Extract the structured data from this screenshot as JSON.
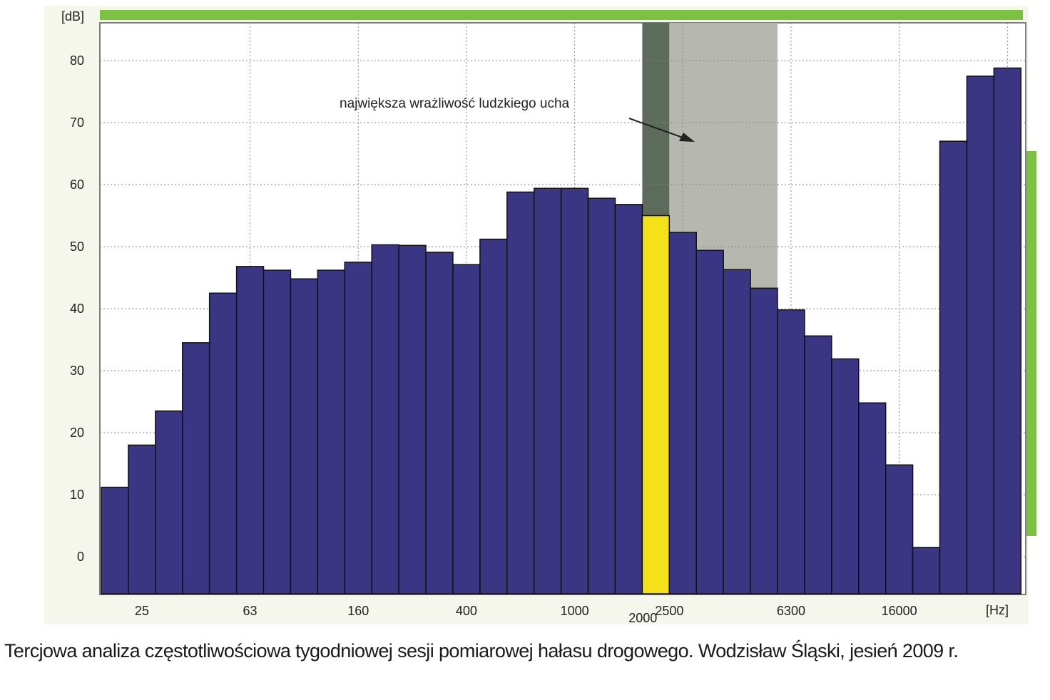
{
  "chart_data": {
    "type": "bar",
    "ylabel": "[dB]",
    "xlabel": "[Hz]",
    "ylim": [
      -6,
      85
    ],
    "yticks": [
      0,
      10,
      20,
      30,
      40,
      50,
      60,
      70,
      80
    ],
    "grid": true,
    "x_tick_labels": [
      {
        "band": 1,
        "label": "25"
      },
      {
        "band": 5,
        "label": "63"
      },
      {
        "band": 9,
        "label": "160"
      },
      {
        "band": 13,
        "label": "400"
      },
      {
        "band": 17,
        "label": "1000"
      },
      {
        "band": 20,
        "label": "2000"
      },
      {
        "band": 21,
        "label": "2500"
      },
      {
        "band": 25,
        "label": "6300"
      },
      {
        "band": 29,
        "label": "16000"
      }
    ],
    "values": [
      11.2,
      18,
      23.5,
      34.5,
      42.5,
      46.8,
      46.2,
      44.8,
      46.2,
      47.5,
      50.3,
      50.2,
      49.1,
      47.1,
      51.2,
      58.8,
      59.4,
      59.4,
      57.8,
      56.8,
      55.0,
      52.3,
      49.4,
      46.3,
      43.3,
      39.8,
      35.6,
      31.9,
      24.8,
      14.8,
      1.5,
      67.0,
      77.5,
      78.8
    ],
    "highlight_band": 20,
    "bar_color": "#3b3683",
    "highlight_color": "#f4e11a",
    "region_color": "#b6b8b0",
    "region_dark_color": "#5c6b5c",
    "annotation": {
      "text": "największa wrażliwość ludzkiego ucha"
    }
  },
  "caption": "Tercjowa analiza częstotliwościowa tygodniowej sesji pomiarowej hałasu  drogowego. Wodzisław Śląski, jesień 2009 r.",
  "colors": {
    "frame_green": "#7cc142",
    "panel_bg": "#f5f6ec"
  }
}
